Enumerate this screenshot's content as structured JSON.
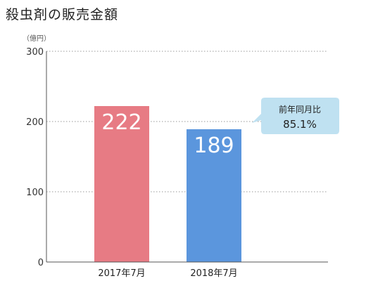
{
  "chart_data": {
    "type": "bar",
    "title": "殺虫剤の販売金額",
    "ylabel": "（億円）",
    "xlabel": "",
    "categories": [
      "2017年7月",
      "2018年7月"
    ],
    "values": [
      222,
      189
    ],
    "data_labels": [
      "222",
      "189"
    ],
    "bar_colors": [
      "#e77b84",
      "#5b96dd"
    ],
    "ylim": [
      0,
      300
    ],
    "yticks": [
      0,
      100,
      200,
      300
    ],
    "ytick_labels": [
      "0",
      "100",
      "200",
      "300"
    ],
    "grid": true,
    "grid_style": "dotted",
    "legend": false,
    "annotation": {
      "title": "前年同月比",
      "value": "85.1%",
      "background": "#bfe1f1"
    }
  }
}
